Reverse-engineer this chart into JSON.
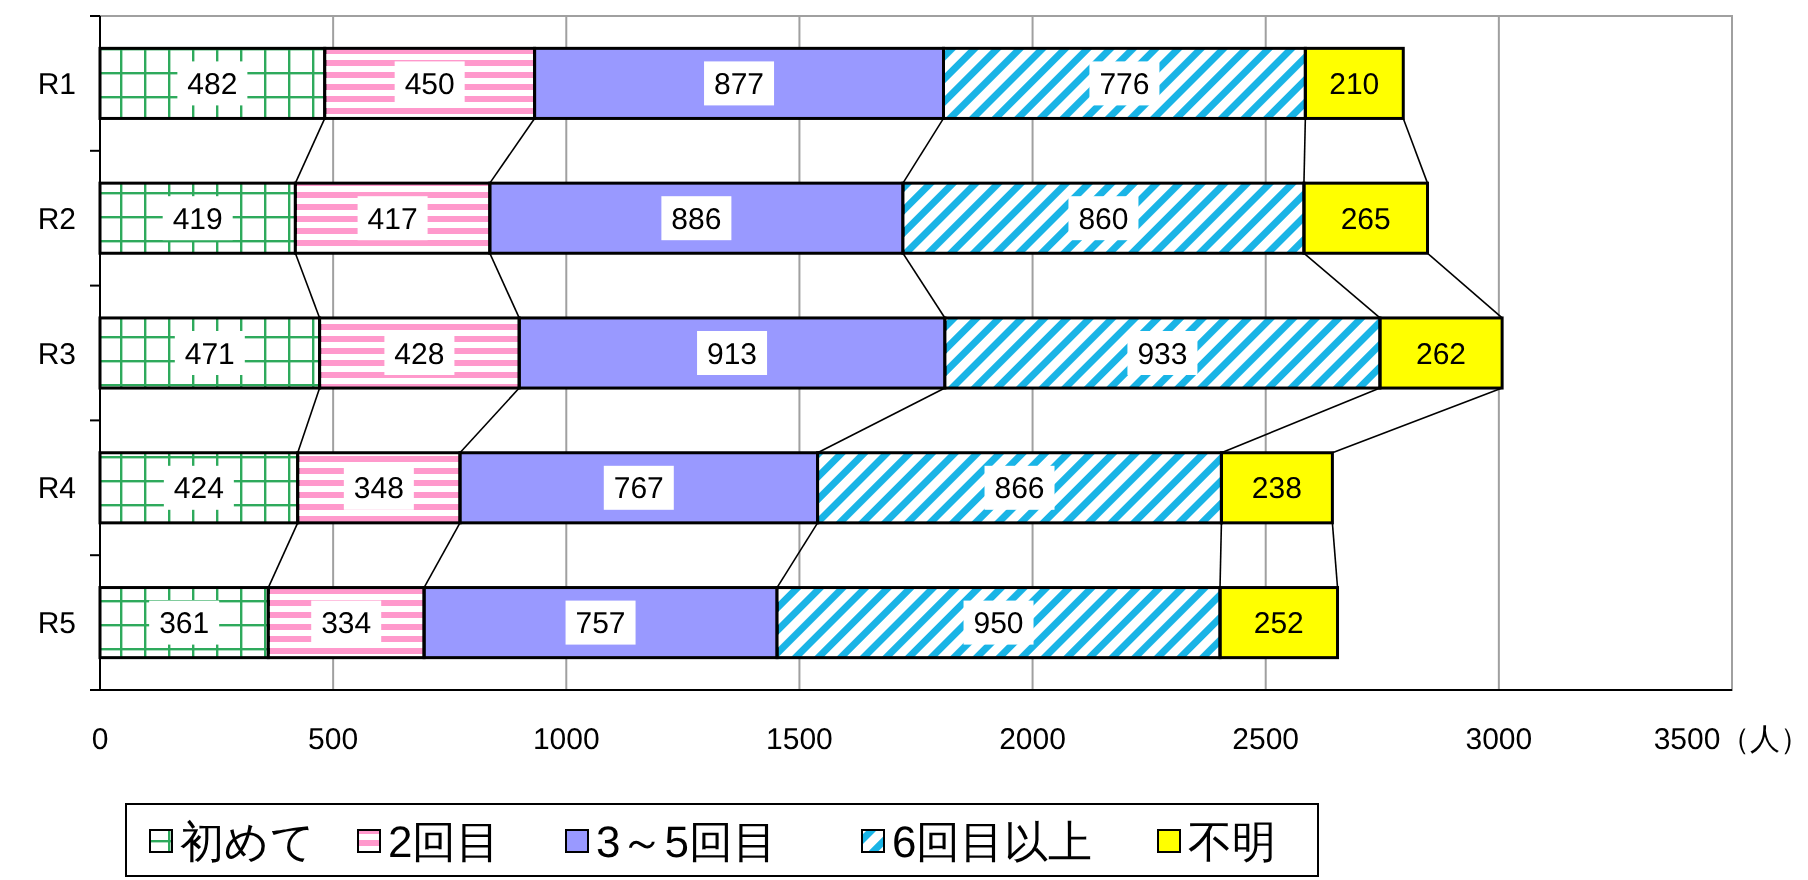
{
  "chart_data": {
    "type": "bar",
    "orientation": "horizontal",
    "stacked": true,
    "categories": [
      "R1",
      "R2",
      "R3",
      "R4",
      "R5"
    ],
    "series": [
      {
        "name": "初めて",
        "color": "#2eaa5c",
        "values": [
          482,
          419,
          471,
          424,
          361
        ]
      },
      {
        "name": "2回目",
        "color": "#ff99cc",
        "values": [
          450,
          417,
          428,
          348,
          334
        ]
      },
      {
        "name": "3～5回目",
        "color": "#9999ff",
        "values": [
          877,
          886,
          913,
          767,
          757
        ]
      },
      {
        "name": "6回目以上",
        "color": "#19b4e6",
        "values": [
          776,
          860,
          933,
          866,
          950
        ]
      },
      {
        "name": "不明",
        "color": "#ffff00",
        "values": [
          210,
          265,
          262,
          238,
          252
        ]
      }
    ],
    "xlim": [
      0,
      3500
    ],
    "xticks": [
      0,
      500,
      1000,
      1500,
      2000,
      2500,
      3000,
      {
        "value": 3500,
        "label": "3500（人）"
      }
    ],
    "grid": "x",
    "legend": "bottom",
    "data_labels": true
  }
}
